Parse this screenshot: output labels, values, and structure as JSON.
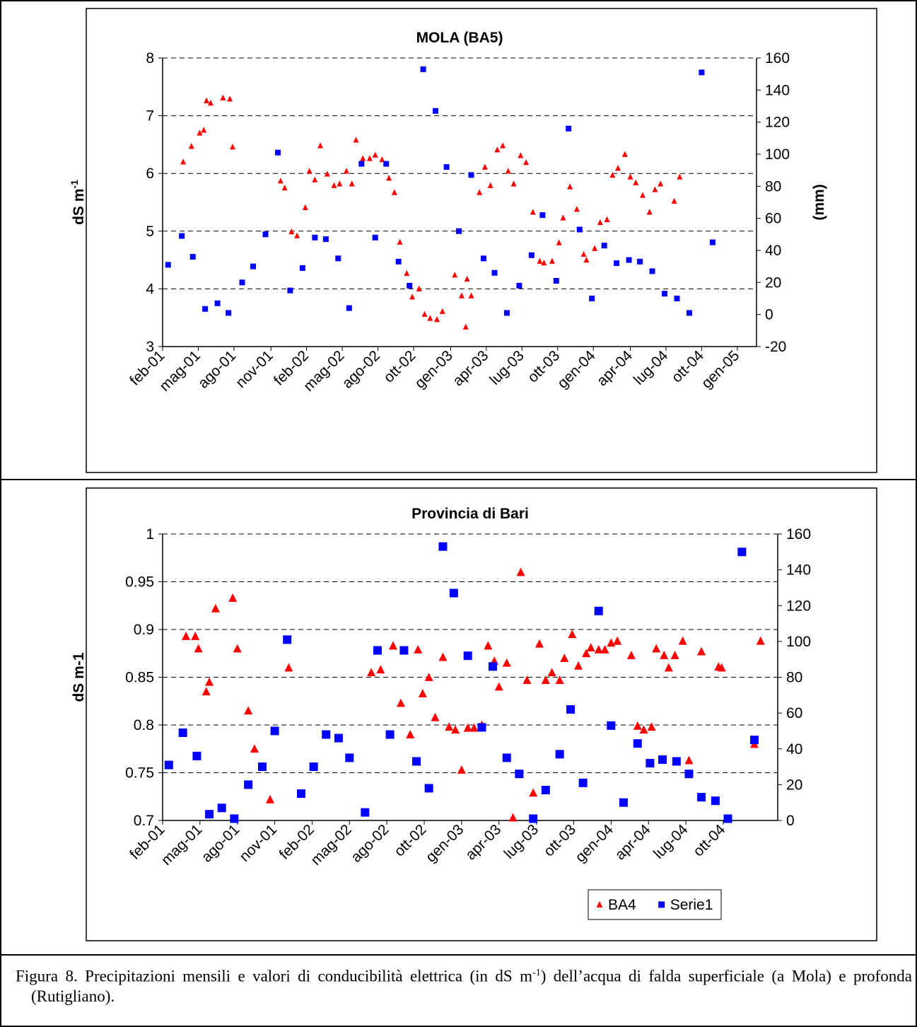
{
  "chart_data": [
    {
      "type": "scatter",
      "title": "MOLA (BA5)",
      "y_label": "dS m",
      "y_label_sup": "-1",
      "y2_label": "(mm)",
      "grid": true,
      "xlim": [
        0,
        43.3
      ],
      "xticks": [
        {
          "value": 0,
          "label": "feb-01"
        },
        {
          "value": 2.6,
          "label": "mag-01"
        },
        {
          "value": 5.2,
          "label": "ago-01"
        },
        {
          "value": 7.9,
          "label": "nov-01"
        },
        {
          "value": 10.5,
          "label": "feb-02"
        },
        {
          "value": 13.1,
          "label": "mag-02"
        },
        {
          "value": 15.7,
          "label": "ago-02"
        },
        {
          "value": 18.3,
          "label": "ott-02"
        },
        {
          "value": 21.0,
          "label": "gen-03"
        },
        {
          "value": 23.6,
          "label": "apr-03"
        },
        {
          "value": 26.2,
          "label": "lug-03"
        },
        {
          "value": 28.8,
          "label": "ott-03"
        },
        {
          "value": 31.4,
          "label": "gen-04"
        },
        {
          "value": 34.1,
          "label": "apr-04"
        },
        {
          "value": 36.7,
          "label": "lug-04"
        },
        {
          "value": 39.3,
          "label": "ott-04"
        },
        {
          "value": 41.9,
          "label": "gen-05"
        }
      ],
      "ylim": [
        3,
        8
      ],
      "yticks": [
        3,
        4,
        5,
        6,
        7,
        8
      ],
      "y2lim": [
        -20,
        160
      ],
      "y2ticks": [
        -20,
        0,
        20,
        40,
        60,
        80,
        100,
        120,
        140,
        160
      ],
      "series": [
        {
          "color": "#ff0000",
          "marker": "triangle",
          "x": [
            1.5,
            2.1,
            2.7,
            3.0,
            3.2,
            3.5,
            4.4,
            4.9,
            5.1,
            8.6,
            8.9,
            9.4,
            9.8,
            10.4,
            10.7,
            11.1,
            11.5,
            12.0,
            12.5,
            12.9,
            13.4,
            13.8,
            14.1,
            14.6,
            15.1,
            15.5,
            16.0,
            16.5,
            16.9,
            17.3,
            17.8,
            18.2,
            18.7,
            19.1,
            19.5,
            20.0,
            20.4,
            21.3,
            21.8,
            22.1,
            22.2,
            22.5,
            23.1,
            23.5,
            23.9,
            24.4,
            24.8,
            25.2,
            25.6,
            26.1,
            26.5,
            27.0,
            27.5,
            27.8,
            28.4,
            28.9,
            29.2,
            29.7,
            30.2,
            30.7,
            30.9,
            31.5,
            31.9,
            32.4,
            32.8,
            33.2,
            33.7,
            34.1,
            34.5,
            35.0,
            35.5,
            35.9,
            36.3,
            37.3,
            37.7
          ],
          "values": [
            6.2,
            6.47,
            6.7,
            6.75,
            7.26,
            7.22,
            7.31,
            7.29,
            6.46,
            5.87,
            5.75,
            4.99,
            4.92,
            5.41,
            6.04,
            5.89,
            6.48,
            5.99,
            5.79,
            5.82,
            6.04,
            5.82,
            6.58,
            6.26,
            6.26,
            6.32,
            6.24,
            5.92,
            5.67,
            4.81,
            4.27,
            3.86,
            4.0,
            3.56,
            3.49,
            3.47,
            3.61,
            4.24,
            3.88,
            3.34,
            4.17,
            3.88,
            5.67,
            6.11,
            5.79,
            6.41,
            6.48,
            6.04,
            5.82,
            6.31,
            6.19,
            5.33,
            4.48,
            4.45,
            4.48,
            4.8,
            5.23,
            5.77,
            5.38,
            4.6,
            4.5,
            4.7,
            5.15,
            5.2,
            5.97,
            6.09,
            6.33,
            5.94,
            5.84,
            5.62,
            5.33,
            5.72,
            5.82,
            5.52,
            5.94
          ]
        },
        {
          "color": "#0000ff",
          "marker": "square",
          "axis": "y2",
          "x": [
            0.4,
            1.4,
            2.2,
            3.1,
            4.0,
            4.8,
            5.8,
            6.6,
            7.5,
            8.4,
            9.3,
            10.2,
            11.1,
            11.9,
            12.8,
            13.6,
            14.5,
            15.5,
            16.3,
            17.2,
            18.0,
            19.0,
            19.9,
            20.7,
            21.6,
            22.5,
            23.4,
            24.2,
            25.1,
            26.0,
            26.9,
            27.7,
            28.7,
            29.6,
            30.4,
            31.3,
            32.2,
            33.1,
            34.0,
            34.8,
            35.7,
            36.6,
            37.5,
            38.4,
            39.3,
            40.1
          ],
          "values": [
            31,
            49,
            36,
            3.5,
            7,
            1,
            20,
            30,
            50,
            101,
            15,
            29,
            48,
            47,
            35,
            4,
            94,
            48,
            94,
            33,
            18,
            153,
            127,
            92,
            52,
            87,
            35,
            26,
            1,
            18,
            37,
            62,
            21,
            116,
            53,
            10,
            43,
            32,
            34,
            33,
            27,
            13,
            10,
            1,
            151,
            45
          ]
        }
      ]
    },
    {
      "type": "scatter",
      "title": "Provincia di Bari",
      "y_label": "dS m-1",
      "grid": true,
      "legend": "bottom-right",
      "xlim": [
        0,
        39.5
      ],
      "xticks": [
        {
          "value": 0,
          "label": "feb-01"
        },
        {
          "value": 2.4,
          "label": "mag-01"
        },
        {
          "value": 4.8,
          "label": "ago-01"
        },
        {
          "value": 7.2,
          "label": "nov-01"
        },
        {
          "value": 9.6,
          "label": "feb-02"
        },
        {
          "value": 12.0,
          "label": "mag-02"
        },
        {
          "value": 14.4,
          "label": "ago-02"
        },
        {
          "value": 16.8,
          "label": "ott-02"
        },
        {
          "value": 19.2,
          "label": "gen-03"
        },
        {
          "value": 21.6,
          "label": "apr-03"
        },
        {
          "value": 24.0,
          "label": "lug-03"
        },
        {
          "value": 26.4,
          "label": "ott-03"
        },
        {
          "value": 28.8,
          "label": "gen-04"
        },
        {
          "value": 31.2,
          "label": "apr-04"
        },
        {
          "value": 33.6,
          "label": "lug-04"
        },
        {
          "value": 36.0,
          "label": "ott-04"
        }
      ],
      "ylim": [
        0.7,
        1
      ],
      "yticks": [
        0.7,
        0.75,
        0.8,
        0.85,
        0.9,
        0.95,
        1
      ],
      "y2lim": [
        0,
        160
      ],
      "y2ticks": [
        0,
        20,
        40,
        60,
        80,
        100,
        120,
        140,
        160
      ],
      "series": [
        {
          "name": "BA4",
          "color": "#ff0000",
          "marker": "triangle",
          "x": [
            1.5,
            2.1,
            2.3,
            2.8,
            3.0,
            3.4,
            4.5,
            4.8,
            5.5,
            5.9,
            6.9,
            8.1,
            13.4,
            14.0,
            14.8,
            15.3,
            15.9,
            16.4,
            16.7,
            17.1,
            17.5,
            18.0,
            18.4,
            18.8,
            19.2,
            19.6,
            20.0,
            20.5,
            20.9,
            21.3,
            21.6,
            22.1,
            22.5,
            23.0,
            23.4,
            23.8,
            24.2,
            24.6,
            25.0,
            25.5,
            25.8,
            26.3,
            26.7,
            27.2,
            27.5,
            28.0,
            28.4,
            28.8,
            29.2,
            30.1,
            30.5,
            30.9,
            31.4,
            31.7,
            32.2,
            32.5,
            32.9,
            33.4,
            33.8,
            34.6,
            35.7,
            35.9,
            38.0,
            38.4
          ],
          "values": [
            0.893,
            0.893,
            0.88,
            0.835,
            0.845,
            0.922,
            0.933,
            0.88,
            0.815,
            0.775,
            0.722,
            0.86,
            0.855,
            0.858,
            0.883,
            0.823,
            0.79,
            0.879,
            0.833,
            0.85,
            0.808,
            0.871,
            0.798,
            0.795,
            0.753,
            0.797,
            0.797,
            0.8,
            0.883,
            0.867,
            0.84,
            0.865,
            0.703,
            0.96,
            0.847,
            0.729,
            0.885,
            0.847,
            0.855,
            0.847,
            0.87,
            0.895,
            0.862,
            0.875,
            0.881,
            0.879,
            0.879,
            0.886,
            0.888,
            0.873,
            0.799,
            0.795,
            0.798,
            0.88,
            0.873,
            0.86,
            0.873,
            0.888,
            0.763,
            0.877,
            0.861,
            0.86,
            0.78,
            0.888
          ]
        },
        {
          "name": "Serie1",
          "color": "#0000ff",
          "marker": "square",
          "axis": "y2",
          "x": [
            0.4,
            1.3,
            2.2,
            3.0,
            3.8,
            4.6,
            5.5,
            6.4,
            7.2,
            8.0,
            8.9,
            9.7,
            10.5,
            11.3,
            12.0,
            13.0,
            13.8,
            14.6,
            15.5,
            16.3,
            17.1,
            18.0,
            18.7,
            19.6,
            20.5,
            21.2,
            22.1,
            22.9,
            23.8,
            24.6,
            25.5,
            26.2,
            27.0,
            28.0,
            28.8,
            29.6,
            30.5,
            31.3,
            32.1,
            33.0,
            33.8,
            34.6,
            35.5,
            36.3,
            37.2,
            38.0
          ],
          "values": [
            31,
            49,
            36,
            3.5,
            7,
            1,
            20,
            30,
            50,
            101,
            15,
            30,
            48,
            46,
            35,
            4.5,
            95,
            48,
            95,
            33,
            18,
            153,
            127,
            92,
            52,
            86,
            35,
            26,
            1,
            17,
            37,
            62,
            21,
            117,
            53,
            10,
            43,
            32,
            34,
            33,
            26,
            13,
            11,
            1,
            150,
            45
          ]
        }
      ]
    }
  ],
  "caption": {
    "parts": [
      "Figura 8. Precipitazioni mensili e valori di conducibilità elettrica (in dS m",
      "-1",
      ") dell’acqua di falda superficiale (a Mola) e profonda (Rutigliano)."
    ]
  }
}
